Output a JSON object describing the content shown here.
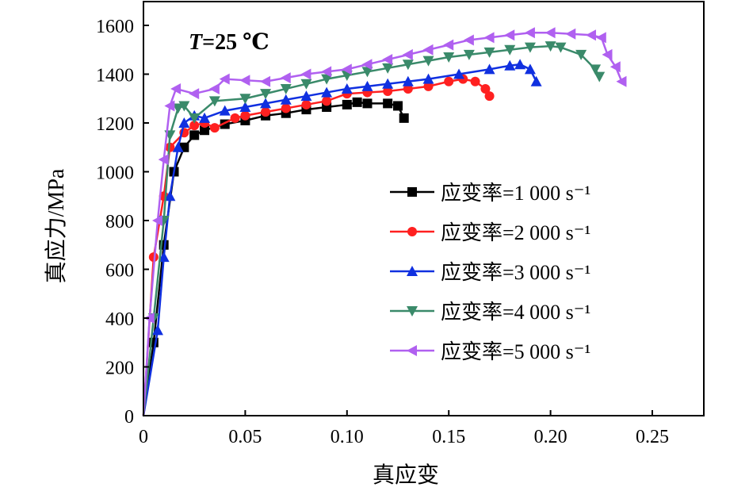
{
  "chart_data": {
    "type": "line",
    "annotation": {
      "italic": "T",
      "rest": "=25 ℃"
    },
    "xlabel": "真应变",
    "ylabel": "真应力/MPa",
    "xlim": [
      0,
      0.275
    ],
    "ylim": [
      0,
      1700
    ],
    "xticks": [
      0,
      0.05,
      0.1,
      0.15,
      0.2,
      0.25
    ],
    "xtick_labels": [
      "0",
      "0.05",
      "0.10",
      "0.15",
      "0.20",
      "0.25"
    ],
    "yticks": [
      0,
      200,
      400,
      600,
      800,
      1000,
      1200,
      1400,
      1600
    ],
    "ytick_labels": [
      "0",
      "200",
      "400",
      "600",
      "800",
      "1000",
      "1200",
      "1400",
      "1600"
    ],
    "grid": false,
    "legend_position": "center-right",
    "series": [
      {
        "name": "应变率=1 000 s⁻¹",
        "color": "#000000",
        "marker": "square",
        "x": [
          0,
          0.005,
          0.01,
          0.015,
          0.02,
          0.025,
          0.03,
          0.04,
          0.05,
          0.06,
          0.07,
          0.08,
          0.09,
          0.1,
          0.105,
          0.11,
          0.12,
          0.125,
          0.128
        ],
        "y": [
          0,
          300,
          700,
          1000,
          1100,
          1150,
          1170,
          1195,
          1210,
          1230,
          1240,
          1255,
          1265,
          1275,
          1285,
          1280,
          1280,
          1270,
          1220
        ]
      },
      {
        "name": "应变率=2 000 s⁻¹",
        "color": "#ff2020",
        "marker": "circle",
        "x": [
          0,
          0.005,
          0.01,
          0.013,
          0.02,
          0.025,
          0.03,
          0.035,
          0.045,
          0.05,
          0.06,
          0.07,
          0.08,
          0.09,
          0.1,
          0.11,
          0.12,
          0.13,
          0.14,
          0.15,
          0.157,
          0.163,
          0.168,
          0.17
        ],
        "y": [
          0,
          650,
          900,
          1100,
          1160,
          1190,
          1200,
          1180,
          1220,
          1230,
          1245,
          1260,
          1275,
          1290,
          1320,
          1325,
          1330,
          1340,
          1350,
          1370,
          1380,
          1370,
          1340,
          1310
        ]
      },
      {
        "name": "应变率=3 000 s⁻¹",
        "color": "#1030e0",
        "marker": "triangle-up",
        "x": [
          0,
          0.007,
          0.01,
          0.013,
          0.017,
          0.02,
          0.025,
          0.03,
          0.04,
          0.05,
          0.06,
          0.07,
          0.08,
          0.09,
          0.1,
          0.11,
          0.12,
          0.13,
          0.14,
          0.155,
          0.17,
          0.18,
          0.185,
          0.19,
          0.193
        ],
        "y": [
          0,
          350,
          650,
          900,
          1100,
          1200,
          1230,
          1220,
          1250,
          1265,
          1280,
          1295,
          1310,
          1325,
          1340,
          1350,
          1360,
          1370,
          1380,
          1400,
          1420,
          1435,
          1440,
          1420,
          1370
        ]
      },
      {
        "name": "应变率=4 000 s⁻¹",
        "color": "#3a8a6a",
        "marker": "triangle-down",
        "x": [
          0,
          0.005,
          0.01,
          0.013,
          0.017,
          0.02,
          0.025,
          0.035,
          0.05,
          0.06,
          0.07,
          0.08,
          0.09,
          0.1,
          0.11,
          0.12,
          0.13,
          0.14,
          0.15,
          0.16,
          0.17,
          0.18,
          0.19,
          0.2,
          0.205,
          0.215,
          0.222,
          0.224
        ],
        "y": [
          0,
          400,
          800,
          1150,
          1260,
          1270,
          1220,
          1290,
          1300,
          1320,
          1340,
          1360,
          1380,
          1395,
          1410,
          1425,
          1440,
          1455,
          1470,
          1480,
          1490,
          1500,
          1510,
          1515,
          1510,
          1480,
          1420,
          1390
        ]
      },
      {
        "name": "应变率=5 000 s⁻¹",
        "color": "#b060f0",
        "marker": "triangle-left",
        "x": [
          0,
          0.003,
          0.007,
          0.01,
          0.013,
          0.016,
          0.025,
          0.035,
          0.04,
          0.05,
          0.06,
          0.07,
          0.08,
          0.09,
          0.1,
          0.11,
          0.12,
          0.13,
          0.14,
          0.15,
          0.16,
          0.17,
          0.18,
          0.19,
          0.2,
          0.21,
          0.22,
          0.225,
          0.228,
          0.232,
          0.235
        ],
        "y": [
          0,
          400,
          800,
          1050,
          1270,
          1340,
          1320,
          1340,
          1380,
          1375,
          1370,
          1385,
          1400,
          1410,
          1420,
          1440,
          1460,
          1480,
          1500,
          1520,
          1540,
          1550,
          1560,
          1570,
          1570,
          1565,
          1560,
          1550,
          1480,
          1430,
          1370
        ]
      }
    ]
  }
}
